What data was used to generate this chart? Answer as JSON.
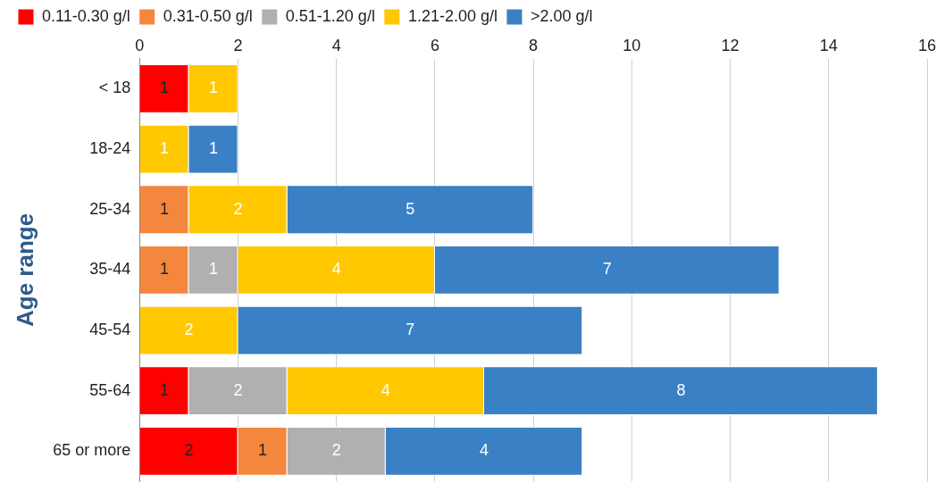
{
  "chart_data": {
    "type": "bar",
    "orientation": "horizontal",
    "stacked": true,
    "ylabel": "Age range",
    "categories": [
      "< 18",
      "18-24",
      "25-34",
      "35-44",
      "45-54",
      "55-64",
      "65 or more"
    ],
    "series": [
      {
        "name": "0.11-0.30 g/l",
        "color": "#ff0000",
        "values": [
          1,
          null,
          null,
          null,
          null,
          1,
          2
        ]
      },
      {
        "name": "0.31-0.50 g/l",
        "color": "#f4873e",
        "values": [
          null,
          null,
          1,
          1,
          null,
          null,
          1
        ]
      },
      {
        "name": "0.51-1.20 g/l",
        "color": "#b0b0b0",
        "values": [
          null,
          null,
          null,
          1,
          null,
          2,
          2
        ]
      },
      {
        "name": "1.21-2.00 g/l",
        "color": "#ffc800",
        "values": [
          1,
          1,
          2,
          4,
          2,
          4,
          null
        ]
      },
      {
        "name": ">2.00 g/l",
        "color": "#3a80c4",
        "values": [
          null,
          1,
          5,
          7,
          7,
          8,
          4
        ]
      }
    ],
    "xlim": [
      0,
      16
    ],
    "xticks": [
      0,
      2,
      4,
      6,
      8,
      10,
      12,
      14,
      16
    ],
    "grid": "x",
    "legend": "top",
    "data_labels": true
  }
}
